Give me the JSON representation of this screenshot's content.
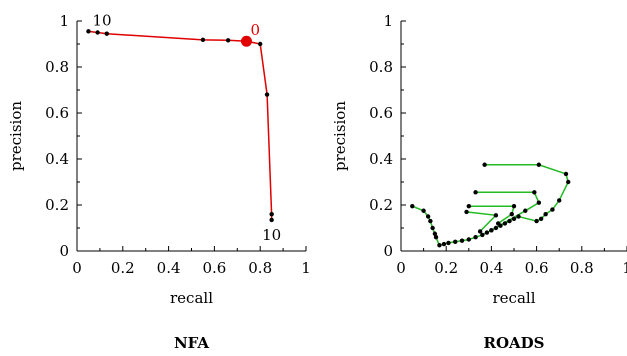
{
  "chart_data": [
    {
      "type": "line",
      "title": "NFA",
      "xlabel": "recall",
      "ylabel": "precision",
      "xlim": [
        0,
        1
      ],
      "ylim": [
        0,
        1
      ],
      "xticks": [
        "0",
        "0.2",
        "0.4",
        "0.6",
        "0.8",
        "1"
      ],
      "yticks": [
        "0",
        "0.2",
        "0.4",
        "0.6",
        "0.8",
        "1"
      ],
      "line_color": "#e00000",
      "series": [
        {
          "points": [
            {
              "x": 0.05,
              "y": 0.955
            },
            {
              "x": 0.09,
              "y": 0.95
            },
            {
              "x": 0.13,
              "y": 0.945
            },
            {
              "x": 0.55,
              "y": 0.918
            },
            {
              "x": 0.66,
              "y": 0.916
            },
            {
              "x": 0.74,
              "y": 0.912
            },
            {
              "x": 0.8,
              "y": 0.9
            },
            {
              "x": 0.83,
              "y": 0.68
            },
            {
              "x": 0.85,
              "y": 0.16
            },
            {
              "x": 0.85,
              "y": 0.135
            }
          ]
        }
      ],
      "highlight": {
        "x": 0.74,
        "y": 0.912,
        "color": "#e00000"
      },
      "annotations": [
        {
          "text": "10",
          "x": 0.05,
          "y": 0.955,
          "anchor": "upper-right"
        },
        {
          "text": "0",
          "x": 0.74,
          "y": 0.912,
          "anchor": "upper-right",
          "color": "#e00000"
        },
        {
          "text": "10",
          "x": 0.85,
          "y": 0.135,
          "anchor": "below"
        }
      ]
    },
    {
      "type": "line",
      "title": "ROADS",
      "xlabel": "recall",
      "ylabel": "precision",
      "xlim": [
        0,
        1
      ],
      "ylim": [
        0,
        1
      ],
      "xticks": [
        "0",
        "0.2",
        "0.4",
        "0.6",
        "0.8",
        "1"
      ],
      "yticks": [
        "0",
        "0.2",
        "0.4",
        "0.6",
        "0.8",
        "1"
      ],
      "line_color": "#22bb22",
      "series": [
        {
          "points": [
            {
              "x": 0.05,
              "y": 0.195
            },
            {
              "x": 0.1,
              "y": 0.175
            },
            {
              "x": 0.12,
              "y": 0.15
            },
            {
              "x": 0.13,
              "y": 0.13
            },
            {
              "x": 0.14,
              "y": 0.1
            },
            {
              "x": 0.15,
              "y": 0.075
            },
            {
              "x": 0.155,
              "y": 0.06
            },
            {
              "x": 0.17,
              "y": 0.025
            },
            {
              "x": 0.19,
              "y": 0.03
            },
            {
              "x": 0.21,
              "y": 0.035
            },
            {
              "x": 0.24,
              "y": 0.04
            },
            {
              "x": 0.27,
              "y": 0.045
            },
            {
              "x": 0.3,
              "y": 0.05
            },
            {
              "x": 0.33,
              "y": 0.06
            },
            {
              "x": 0.36,
              "y": 0.07
            },
            {
              "x": 0.38,
              "y": 0.08
            },
            {
              "x": 0.4,
              "y": 0.09
            },
            {
              "x": 0.42,
              "y": 0.1
            },
            {
              "x": 0.44,
              "y": 0.11
            },
            {
              "x": 0.46,
              "y": 0.12
            },
            {
              "x": 0.48,
              "y": 0.13
            },
            {
              "x": 0.5,
              "y": 0.14
            },
            {
              "x": 0.52,
              "y": 0.15
            },
            {
              "x": 0.6,
              "y": 0.13
            },
            {
              "x": 0.62,
              "y": 0.14
            },
            {
              "x": 0.64,
              "y": 0.16
            },
            {
              "x": 0.67,
              "y": 0.18
            },
            {
              "x": 0.7,
              "y": 0.22
            },
            {
              "x": 0.74,
              "y": 0.3
            },
            {
              "x": 0.73,
              "y": 0.335
            },
            {
              "x": 0.61,
              "y": 0.375
            },
            {
              "x": 0.37,
              "y": 0.375
            }
          ]
        },
        {
          "points": [
            {
              "x": 0.33,
              "y": 0.255
            },
            {
              "x": 0.59,
              "y": 0.255
            },
            {
              "x": 0.61,
              "y": 0.21
            },
            {
              "x": 0.55,
              "y": 0.175
            },
            {
              "x": 0.4,
              "y": 0.09
            }
          ]
        },
        {
          "points": [
            {
              "x": 0.3,
              "y": 0.195
            },
            {
              "x": 0.5,
              "y": 0.195
            },
            {
              "x": 0.49,
              "y": 0.16
            },
            {
              "x": 0.43,
              "y": 0.12
            }
          ]
        },
        {
          "points": [
            {
              "x": 0.29,
              "y": 0.17
            },
            {
              "x": 0.42,
              "y": 0.155
            },
            {
              "x": 0.35,
              "y": 0.085
            }
          ]
        }
      ]
    }
  ]
}
